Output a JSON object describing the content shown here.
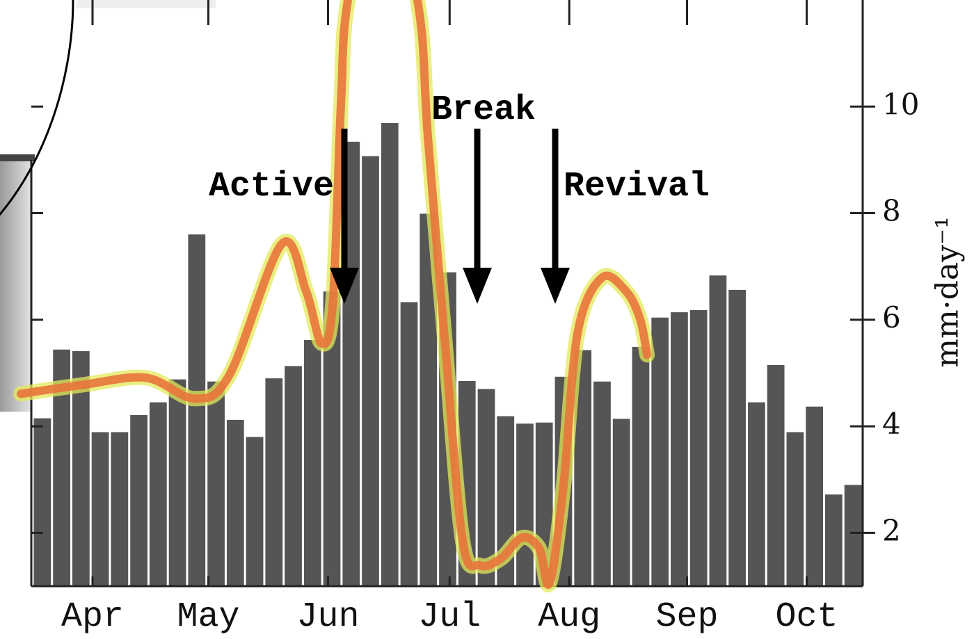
{
  "chart_data": {
    "type": "bar",
    "categories": [
      null,
      null,
      null,
      null,
      null,
      null,
      null,
      null,
      null,
      null,
      null,
      null,
      null,
      null,
      null,
      null,
      null,
      null,
      null,
      null,
      null,
      null,
      null,
      null,
      null,
      null,
      null,
      null,
      null,
      null,
      null,
      null,
      null,
      null,
      null,
      null,
      null,
      null,
      null,
      null,
      null,
      null,
      null
    ],
    "values": [
      4.15,
      5.44,
      5.41,
      3.89,
      3.89,
      4.21,
      4.45,
      4.88,
      7.6,
      4.84,
      4.12,
      3.8,
      4.9,
      5.13,
      5.62,
      6.53,
      9.34,
      9.07,
      9.69,
      6.33,
      7.99,
      6.89,
      4.85,
      4.7,
      4.19,
      4.05,
      4.07,
      4.93,
      5.43,
      4.84,
      4.14,
      5.49,
      6.04,
      6.14,
      6.18,
      6.83,
      6.56,
      4.45,
      5.15,
      3.89,
      4.37,
      2.72,
      2.9
    ],
    "color": "#555555",
    "line": {
      "type": "line",
      "color": "#e8743b",
      "glow": "#e4e85a",
      "x": [
        -0.61,
        2.63,
        5.88,
        8.4,
        10.2,
        12.9,
        14.17,
        14.96,
        15.54,
        15.97,
        16.33,
        17.95,
        19.93,
        20.48,
        21.38,
        22.28,
        23.18,
        24.26,
        25.34,
        26.24,
        26.78,
        27.5,
        28.23,
        29.49,
        30.75,
        31.47,
        31.83
      ],
      "values": [
        4.61,
        4.78,
        4.91,
        4.52,
        4.97,
        7.42,
        6.53,
        5.56,
        6.27,
        10.05,
        12.0,
        14.6,
        12.0,
        9.4,
        5.49,
        1.84,
        1.39,
        1.52,
        1.91,
        1.71,
        1.06,
        2.89,
        5.75,
        6.79,
        6.53,
        6.01,
        5.34
      ]
    },
    "xlim": [
      0,
      43
    ],
    "xticks": [
      {
        "value": 3.1,
        "label": "Apr"
      },
      {
        "value": 9.1,
        "label": "May"
      },
      {
        "value": 15.3,
        "label": "Jun"
      },
      {
        "value": 21.6,
        "label": "Jul"
      },
      {
        "value": 27.8,
        "label": "Aug"
      },
      {
        "value": 33.9,
        "label": "Sep"
      },
      {
        "value": 40.1,
        "label": "Oct"
      }
    ],
    "ylim": [
      1,
      12
    ],
    "yticks": [
      2,
      4,
      6,
      8,
      10
    ],
    "ylabel": "mm·day⁻¹",
    "annotations": [
      "Active",
      "Break",
      "Revival"
    ]
  }
}
